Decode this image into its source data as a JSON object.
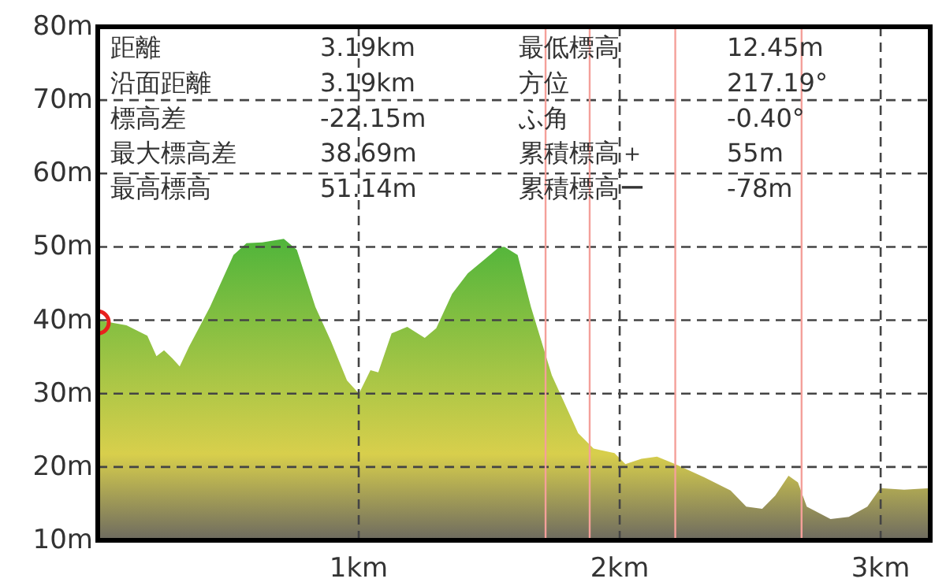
{
  "chart_data": {
    "type": "area",
    "xlim": [
      0,
      3.19
    ],
    "ylim": [
      10,
      80
    ],
    "xticks": [
      {
        "value": 1,
        "label": "1km"
      },
      {
        "value": 2,
        "label": "2km"
      },
      {
        "value": 3,
        "label": "3km"
      }
    ],
    "yticks": [
      {
        "value": 10,
        "label": "10m"
      },
      {
        "value": 20,
        "label": "20m"
      },
      {
        "value": 30,
        "label": "30m"
      },
      {
        "value": 40,
        "label": "40m"
      },
      {
        "value": 50,
        "label": "50m"
      },
      {
        "value": 60,
        "label": "60m"
      },
      {
        "value": 70,
        "label": "70m"
      },
      {
        "value": 80,
        "label": "80m"
      }
    ],
    "grid": true,
    "series": [
      {
        "color": "#4cb43a",
        "x": [
          0,
          0.11,
          0.19,
          0.225,
          0.254,
          0.286,
          0.314,
          0.35,
          0.43,
          0.52,
          0.57,
          0.63,
          0.713,
          0.763,
          0.834,
          0.894,
          0.955,
          1.001,
          1.045,
          1.075,
          1.126,
          1.186,
          1.253,
          1.297,
          1.358,
          1.418,
          1.479,
          1.539,
          1.559,
          1.609,
          1.66,
          1.74,
          1.841,
          1.9,
          1.98,
          2.022,
          2.083,
          2.143,
          2.213,
          2.324,
          2.425,
          2.485,
          2.546,
          2.596,
          2.647,
          2.683,
          2.717,
          2.808,
          2.878,
          2.949,
          2.999,
          3.09,
          3.19
        ],
        "values": [
          40.0,
          39.3,
          37.9,
          35.1,
          35.9,
          34.8,
          33.7,
          36.4,
          41.8,
          48.9,
          50.5,
          50.6,
          51.1,
          49.6,
          41.8,
          37.1,
          31.8,
          30.0,
          33.2,
          32.9,
          38.2,
          39.1,
          37.6,
          38.9,
          43.6,
          46.4,
          48.2,
          50.0,
          50.0,
          48.9,
          41.8,
          32.5,
          24.6,
          22.5,
          21.9,
          20.4,
          21.1,
          21.4,
          20.4,
          18.6,
          16.8,
          14.6,
          14.3,
          16.1,
          18.8,
          17.9,
          14.6,
          12.9,
          13.2,
          14.6,
          17.1,
          16.9,
          17.1
        ]
      },
      {
        "type": "scatter",
        "marker": "circle",
        "color": "#e8211d",
        "x": [
          0
        ],
        "values": [
          39.7
        ]
      }
    ],
    "ref_lines": [
      {
        "axis": "x",
        "value": 1.716,
        "color": "#f4a09a"
      },
      {
        "axis": "x",
        "value": 1.885,
        "color": "#f4a09a"
      },
      {
        "axis": "x",
        "value": 2.213,
        "color": "#f4a09a"
      },
      {
        "axis": "x",
        "value": 2.697,
        "color": "#f4a09a"
      }
    ],
    "annotations": [
      "距離",
      "3.19km",
      "最低標高",
      "12.45m",
      "沿面距離",
      "3.19km",
      "方位",
      "217.19°",
      "標高差",
      "-22.15m",
      "ふ角",
      "-0.40°",
      "最大標高差",
      "38.69m",
      "累積標高＋",
      "55m",
      "最高標高",
      "51.14m",
      "累積標高ー",
      "-78m"
    ]
  }
}
